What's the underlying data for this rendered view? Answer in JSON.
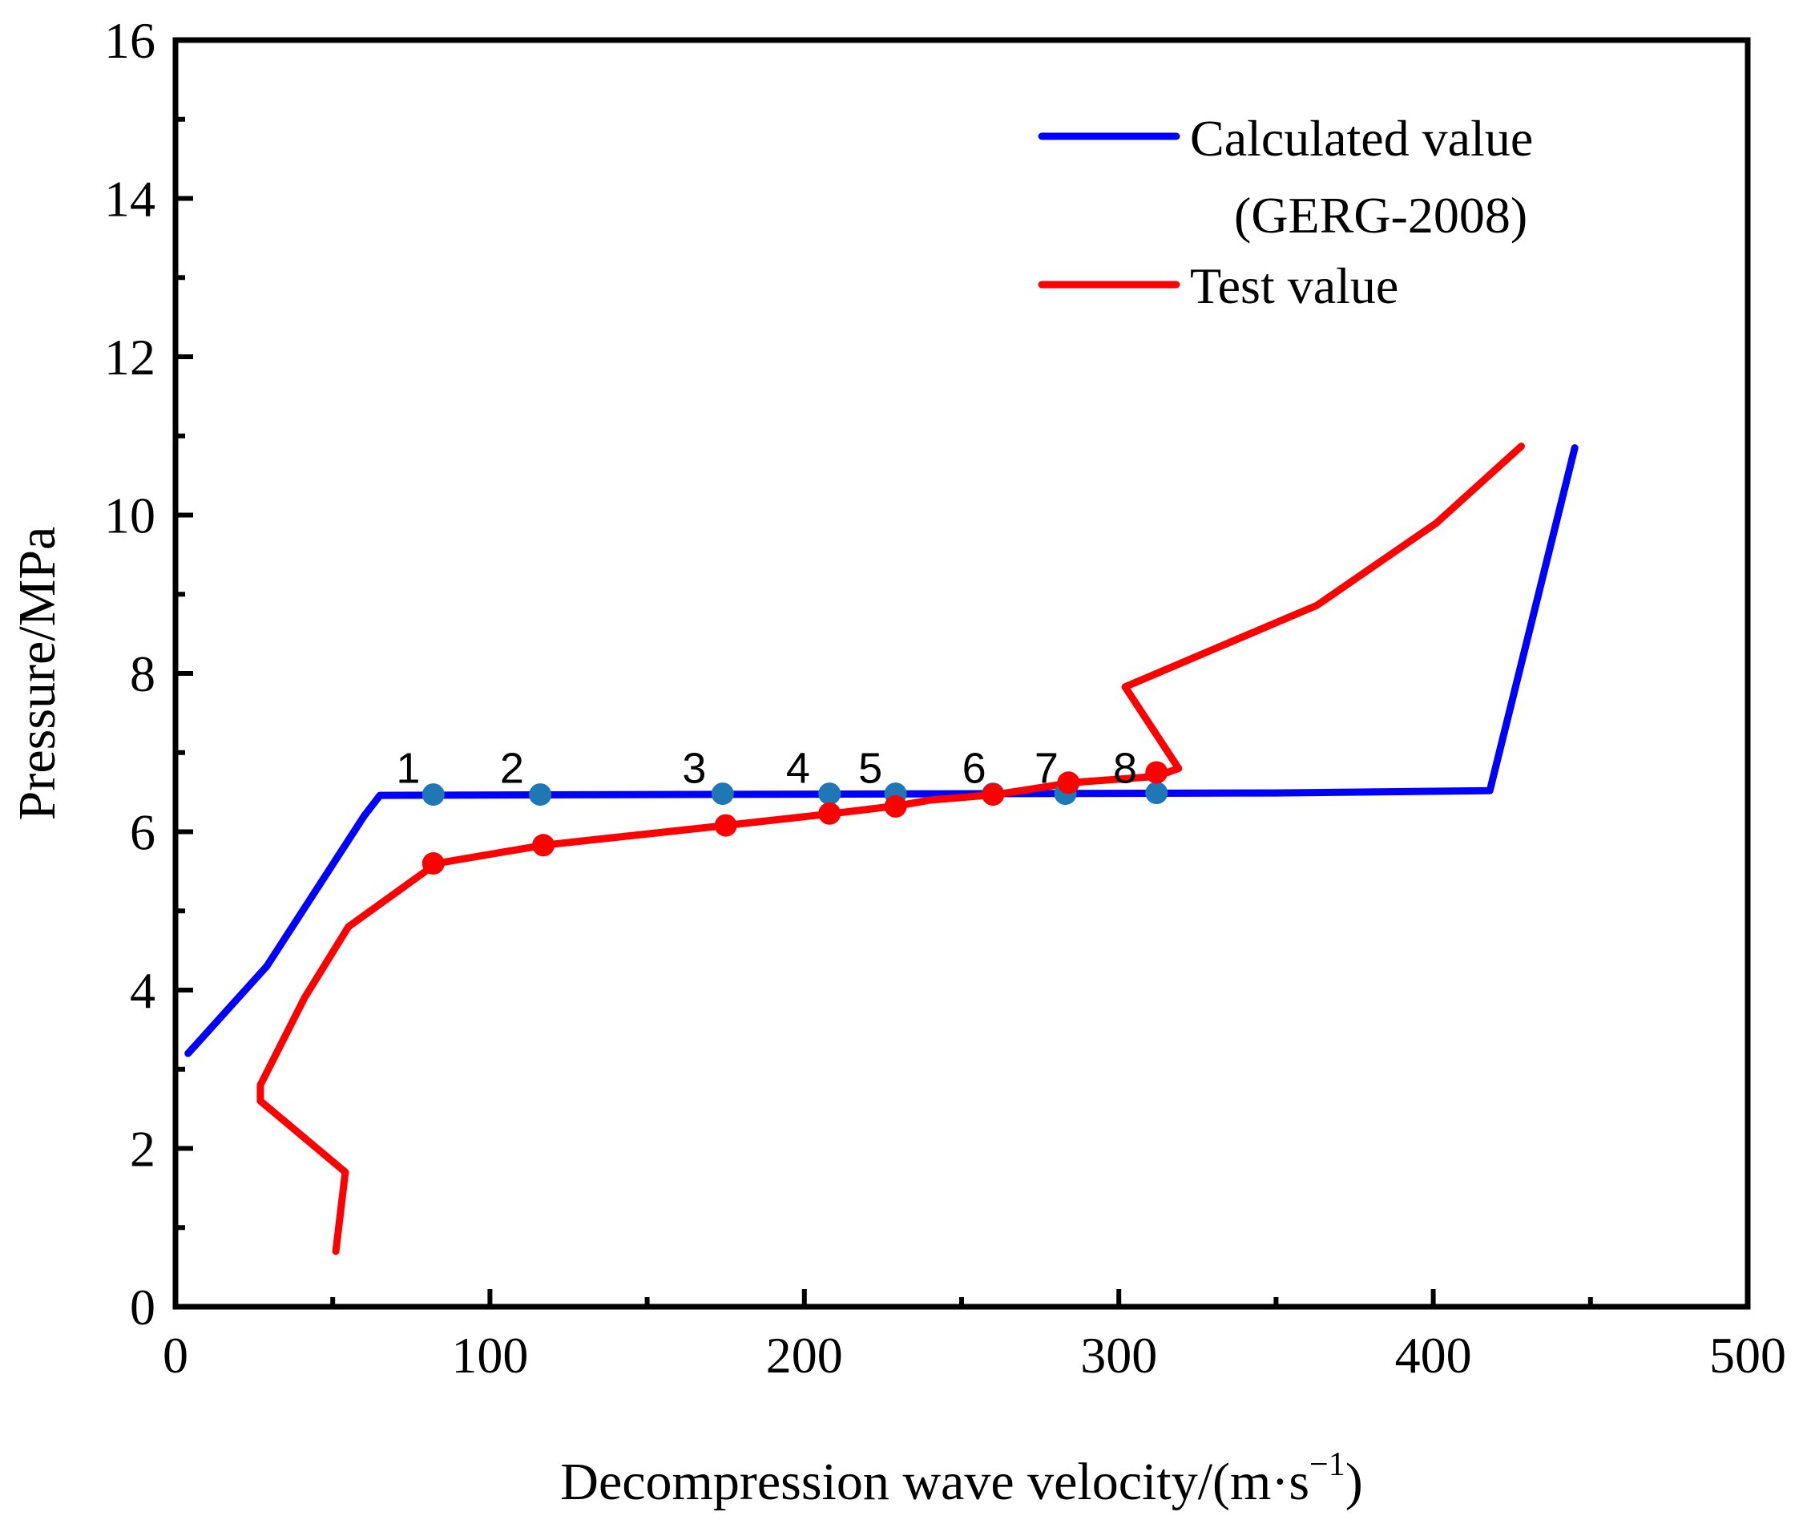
{
  "chart_data": {
    "type": "line",
    "title": "",
    "xlabel": "Decompression wave velocity/(m·s",
    "xlabel_sup": "−1",
    "xlabel_close": ")",
    "ylabel": "Pressure/MPa",
    "xlim": [
      0,
      500
    ],
    "ylim": [
      0,
      16
    ],
    "x_ticks": [
      0,
      100,
      200,
      300,
      400,
      500
    ],
    "y_ticks": [
      0,
      2,
      4,
      6,
      8,
      10,
      12,
      14,
      16
    ],
    "x_tick_labels": [
      "0",
      "100",
      "200",
      "300",
      "400",
      "500"
    ],
    "y_tick_labels": [
      "0",
      "2",
      "4",
      "6",
      "8",
      "10",
      "12",
      "14",
      "16"
    ],
    "legend_position": "top-right",
    "series": [
      {
        "name": "Calculated value",
        "name_line2": "(GERG-2008)",
        "color": "#0000ff",
        "points": [
          [
            4,
            3.2
          ],
          [
            29,
            4.3
          ],
          [
            60,
            6.2
          ],
          [
            65,
            6.46
          ],
          [
            150,
            6.47
          ],
          [
            250,
            6.48
          ],
          [
            350,
            6.49
          ],
          [
            418,
            6.52
          ],
          [
            445,
            10.85
          ]
        ],
        "markers": {
          "color": "#1f77b4",
          "points": [
            [
              82,
              6.47
            ],
            [
              116,
              6.47
            ],
            [
              174,
              6.48
            ],
            [
              208,
              6.48
            ],
            [
              229,
              6.48
            ],
            [
              260,
              6.48
            ],
            [
              283,
              6.48
            ],
            [
              312,
              6.49
            ]
          ]
        }
      },
      {
        "name": "Test value",
        "color": "#ff0000",
        "points": [
          [
            51,
            0.7
          ],
          [
            54,
            1.7
          ],
          [
            27,
            2.6
          ],
          [
            27,
            2.8
          ],
          [
            41,
            3.9
          ],
          [
            55,
            4.8
          ],
          [
            83,
            5.6
          ],
          [
            117,
            5.83
          ],
          [
            175,
            6.08
          ],
          [
            209,
            6.23
          ],
          [
            230,
            6.33
          ],
          [
            240,
            6.4
          ],
          [
            261,
            6.47
          ],
          [
            285,
            6.62
          ],
          [
            312,
            6.7
          ],
          [
            319,
            6.8
          ],
          [
            302,
            7.83
          ],
          [
            363,
            8.86
          ],
          [
            401,
            9.9
          ],
          [
            428,
            10.87
          ]
        ],
        "markers": {
          "color": "#ff0000",
          "points": [
            [
              82,
              5.6
            ],
            [
              117,
              5.83
            ],
            [
              175,
              6.08
            ],
            [
              208,
              6.23
            ],
            [
              229,
              6.32
            ],
            [
              260,
              6.47
            ],
            [
              284,
              6.62
            ],
            [
              312,
              6.75
            ]
          ]
        }
      }
    ],
    "annotations": {
      "labels": [
        "1",
        "2",
        "3",
        "4",
        "5",
        "6",
        "7",
        "8"
      ],
      "positions": [
        [
          74,
          6.8
        ],
        [
          107,
          6.8
        ],
        [
          165,
          6.8
        ],
        [
          198,
          6.8
        ],
        [
          221,
          6.8
        ],
        [
          254,
          6.8
        ],
        [
          277,
          6.8
        ],
        [
          302,
          6.8
        ]
      ]
    }
  }
}
